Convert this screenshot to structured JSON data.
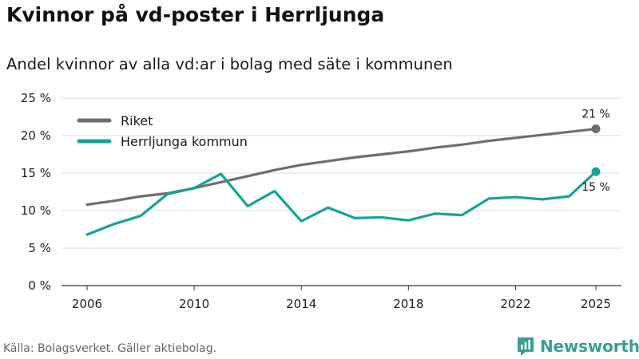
{
  "title": "Kvinnor på vd-poster i Herrljunga",
  "subtitle": "Andel kvinnor av alla vd:ar i bolag med säte i kommunen",
  "source": "Källa: Bolagsverket. Gäller aktiebolag.",
  "brand": {
    "name": "Newsworthy",
    "icon": "newsworthy-logo-icon",
    "color": "#3a9e96"
  },
  "chart_data": {
    "type": "line",
    "title": "Kvinnor på vd-poster i Herrljunga",
    "subtitle": "Andel kvinnor av alla vd:ar i bolag med säte i kommunen",
    "xlabel": "",
    "ylabel": "",
    "x": [
      2006,
      2007,
      2008,
      2009,
      2010,
      2011,
      2012,
      2013,
      2014,
      2015,
      2016,
      2017,
      2018,
      2019,
      2020,
      2021,
      2022,
      2023,
      2024,
      2025
    ],
    "xticks": [
      2006,
      2010,
      2014,
      2018,
      2022,
      2025
    ],
    "xtick_labels": [
      "2006",
      "2010",
      "2014",
      "2018",
      "2022",
      "2025"
    ],
    "ylim": [
      0,
      25
    ],
    "yticks": [
      0,
      5,
      10,
      15,
      20,
      25
    ],
    "ytick_labels": [
      "0 %",
      "5 %",
      "10 %",
      "15 %",
      "20 %",
      "25 %"
    ],
    "grid": true,
    "legend_position": "top-left",
    "series": [
      {
        "name": "Riket",
        "color": "#6e6e72",
        "values": [
          10.8,
          11.3,
          11.9,
          12.3,
          13.0,
          13.8,
          14.6,
          15.4,
          16.1,
          16.6,
          17.1,
          17.5,
          17.9,
          18.4,
          18.8,
          19.3,
          19.7,
          20.1,
          20.5,
          20.9
        ],
        "end_label": "21 %"
      },
      {
        "name": "Herrljunga kommun",
        "color": "#17a399",
        "values": [
          6.8,
          8.2,
          9.3,
          12.2,
          13.0,
          14.9,
          10.6,
          12.6,
          8.6,
          10.4,
          9.0,
          9.1,
          8.7,
          9.6,
          9.4,
          11.6,
          11.8,
          11.5,
          11.9,
          15.2
        ],
        "end_label": "15 %"
      }
    ]
  }
}
